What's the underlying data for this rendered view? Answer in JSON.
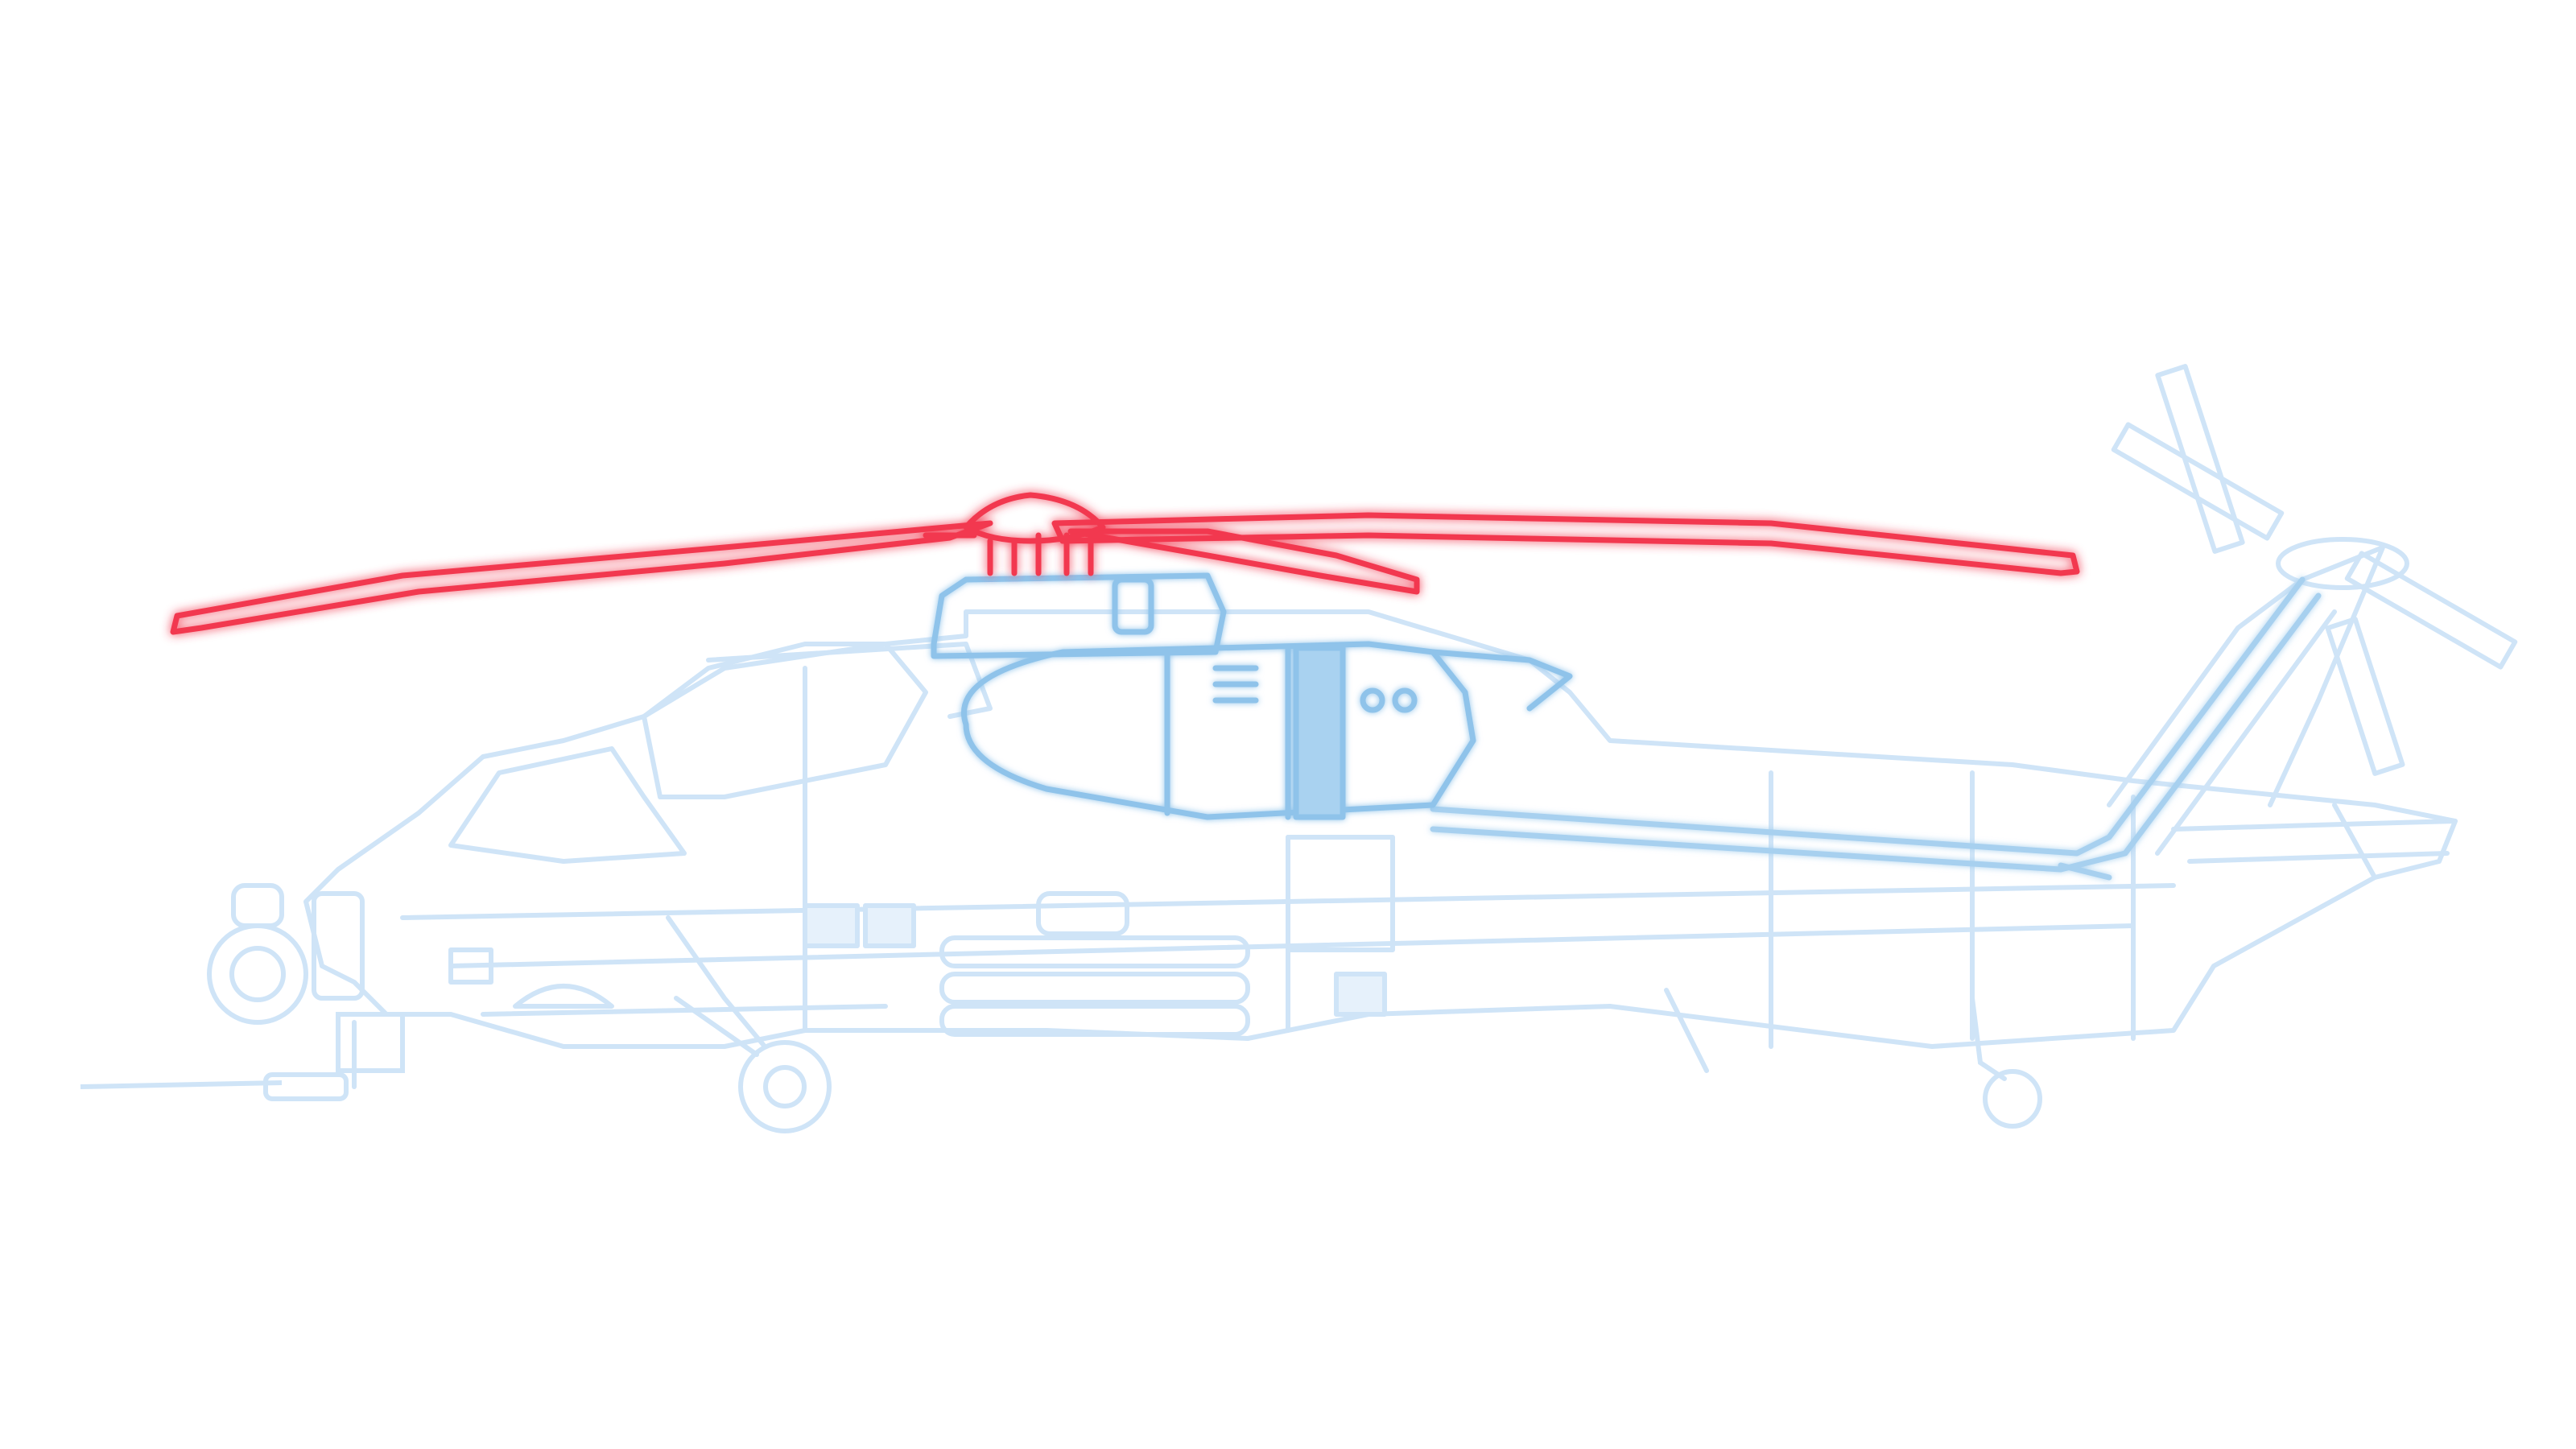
{
  "diagram": {
    "subject": "helicopter-side-view",
    "background_color": "#ffffff",
    "colors": {
      "airframe_faint": "#cfe4f7",
      "airframe_fill": "#e6f1fb",
      "engine_highlight": "#8fc3ea",
      "engine_fill": "#a9d2f0",
      "rotor_highlight": "#f2384f",
      "rotor_glow": "#ff9aa6"
    },
    "parts": [
      {
        "id": "main-rotor",
        "highlight": "primary"
      },
      {
        "id": "engine-nacelle",
        "highlight": "secondary"
      },
      {
        "id": "tail-boom",
        "highlight": "secondary"
      },
      {
        "id": "fuselage",
        "highlight": "none"
      },
      {
        "id": "tail-rotor",
        "highlight": "none"
      },
      {
        "id": "landing-gear",
        "highlight": "none"
      },
      {
        "id": "weapons",
        "highlight": "none"
      }
    ]
  }
}
